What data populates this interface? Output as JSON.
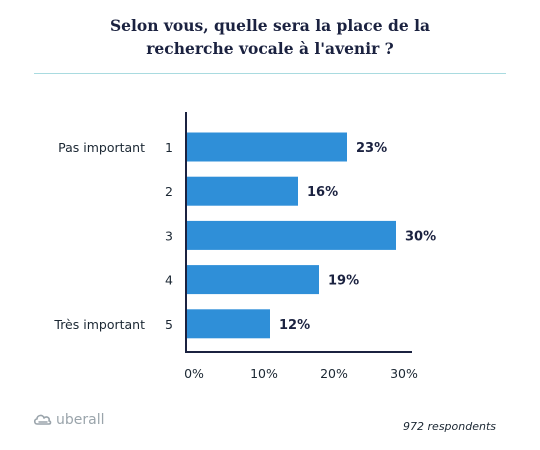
{
  "title": {
    "line1": "Selon vous, quelle sera la place de la",
    "line2": "recherche vocale à l'avenir ?"
  },
  "chart_data": {
    "type": "bar",
    "orientation": "horizontal",
    "categories": [
      "1",
      "2",
      "3",
      "4",
      "5"
    ],
    "category_notes": [
      "Pas important",
      "",
      "",
      "",
      "Très important"
    ],
    "values": [
      23,
      16,
      30,
      19,
      12
    ],
    "value_labels": [
      "23%",
      "16%",
      "30%",
      "19%",
      "12%"
    ],
    "xlim": [
      0,
      30
    ],
    "xticks": [
      0,
      10,
      20,
      30
    ],
    "xtick_labels": [
      "0%",
      "10%",
      "20%",
      "30%"
    ],
    "grid": false,
    "bar_color": "#2f8fd8",
    "axis_color": "#1b2240"
  },
  "footer": {
    "brand": "uberall",
    "respondents": "972 respondents"
  }
}
